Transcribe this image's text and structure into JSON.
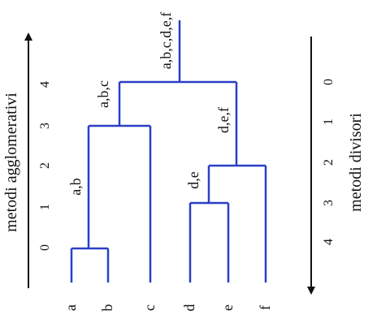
{
  "diagram": {
    "left_axis_label": "metodi agglomerativi",
    "right_axis_label": "metodi divisori",
    "left_ticks": [
      "0",
      "1",
      "2",
      "3",
      "4"
    ],
    "right_ticks": [
      "0",
      "1",
      "2",
      "3",
      "4"
    ],
    "leaves": [
      "a",
      "b",
      "c",
      "d",
      "e",
      "f"
    ],
    "cluster_labels": {
      "ab": "a,b",
      "abc": "a,b,c",
      "de": "d,e",
      "def": "d,e,f",
      "root": "a,b,c,d,e,f"
    },
    "colors": {
      "tree": "#2b3fc6",
      "axis": "#111111"
    }
  }
}
